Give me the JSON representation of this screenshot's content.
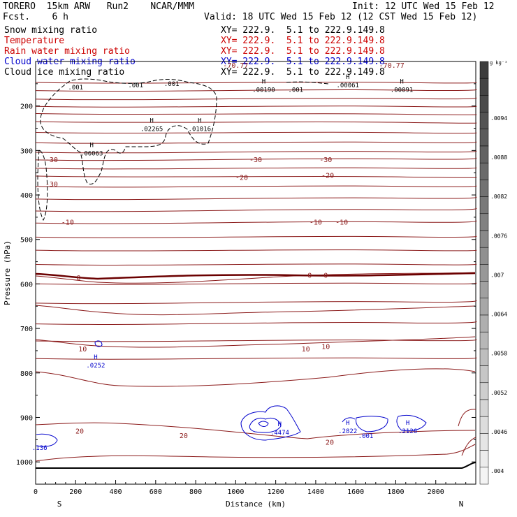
{
  "header": {
    "model": "TORERO  15km ARW   Run2    NCAR/MMM",
    "fcst": "Fcst.    6 h",
    "init": "Init: 12 UTC Wed 15 Feb 12",
    "valid": "Valid: 18 UTC Wed 15 Feb 12 (12 CST Wed 15 Feb 12)"
  },
  "fields": [
    {
      "name": "Snow mixing ratio",
      "xy": "XY= 222.9.  5.1 to 222.9.149.8",
      "color": "#000000"
    },
    {
      "name": "Temperature",
      "xy": "XY= 222.9.  5.1 to 222.9.149.8",
      "color": "#cc0000"
    },
    {
      "name": "Rain water mixing ratio",
      "xy": "XY= 222.9.  5.1 to 222.9.149.8",
      "color": "#cc0000"
    },
    {
      "name": "Cloud water mixing ratio",
      "xy": "XY= 222.9.  5.1 to 222.9.149.8",
      "color": "#0000cc"
    },
    {
      "name": "Cloud ice mixing ratio",
      "xy": "XY= 222.9.  5.1 to 222.9.149.8",
      "color": "#000000"
    }
  ],
  "chart_data": {
    "type": "contour",
    "xlabel": "Distance (km)",
    "ylabel": "Pressure (hPa)",
    "xlim": [
      0,
      2200
    ],
    "ylim": [
      1050,
      100
    ],
    "xticks": [
      0,
      200,
      400,
      600,
      800,
      1000,
      1200,
      1400,
      1600,
      1800,
      2000
    ],
    "yticks": [
      200,
      300,
      400,
      500,
      600,
      700,
      800,
      900,
      1000
    ],
    "end_labels": {
      "left": "S",
      "right": "N"
    },
    "colorbar": {
      "unit": "g kg⁻¹",
      "labels": [
        ".0094",
        ".0088",
        ".0082",
        ".0076",
        ".007",
        ".0064",
        ".0058",
        ".0052",
        ".0046",
        ".004"
      ],
      "top_color": "#3c3c3c",
      "bottom_color": "#f4f4f4"
    },
    "isotherm_labels": [
      {
        "text": "-30",
        "x": 80,
        "p": 320
      },
      {
        "text": "-30",
        "x": 1100,
        "p": 320
      },
      {
        "text": "-30",
        "x": 1450,
        "p": 320
      },
      {
        "text": "-30",
        "x": 80,
        "p": 375
      },
      {
        "text": "-20",
        "x": 1030,
        "p": 360
      },
      {
        "text": "-20",
        "x": 1460,
        "p": 355
      },
      {
        "text": "-10",
        "x": 160,
        "p": 460
      },
      {
        "text": "-10",
        "x": 1400,
        "p": 460
      },
      {
        "text": "-10",
        "x": 1530,
        "p": 460
      },
      {
        "text": "0",
        "x": 215,
        "p": 585
      },
      {
        "text": "0",
        "x": 1370,
        "p": 580
      },
      {
        "text": "0",
        "x": 1450,
        "p": 580
      },
      {
        "text": "10",
        "x": 235,
        "p": 745
      },
      {
        "text": "10",
        "x": 1350,
        "p": 745
      },
      {
        "text": "10",
        "x": 1450,
        "p": 740
      },
      {
        "text": "20",
        "x": 220,
        "p": 930
      },
      {
        "text": "20",
        "x": 740,
        "p": 940
      },
      {
        "text": "20",
        "x": 1470,
        "p": 955
      },
      {
        "text": "-70.77",
        "x": 1780,
        "p": 108
      },
      {
        "text": "-70.77",
        "x": 1000,
        "p": 108
      }
    ],
    "snow_maxima": [
      {
        "text": ".001",
        "x": 200,
        "p": 160
      },
      {
        "text": ".001",
        "x": 500,
        "p": 155
      },
      {
        "text": ".001",
        "x": 680,
        "p": 152
      },
      {
        "text": ".001",
        "x": 1300,
        "p": 165
      },
      {
        "text": ".00190",
        "x": 1140,
        "p": 165,
        "h": true
      },
      {
        "text": ".00061",
        "x": 1560,
        "p": 155,
        "h": true
      },
      {
        "text": ".00091",
        "x": 1830,
        "p": 165,
        "h": true
      },
      {
        "text": ".02265",
        "x": 580,
        "p": 253,
        "h": true
      },
      {
        "text": ".01016",
        "x": 820,
        "p": 253,
        "h": true
      },
      {
        "text": ".06063",
        "x": 280,
        "p": 308,
        "h": true
      }
    ],
    "cloud_water_maxima": [
      {
        "text": ".0252",
        "x": 300,
        "p": 785,
        "h": true
      },
      {
        "text": ".4474",
        "x": 1220,
        "p": 935,
        "h": true
      },
      {
        "text": ".2822",
        "x": 1560,
        "p": 932,
        "h": true
      },
      {
        "text": ".001",
        "x": 1650,
        "p": 943
      },
      {
        "text": ".2126",
        "x": 1860,
        "p": 932,
        "h": true
      },
      {
        "text": ".136",
        "x": 20,
        "p": 970
      }
    ]
  }
}
